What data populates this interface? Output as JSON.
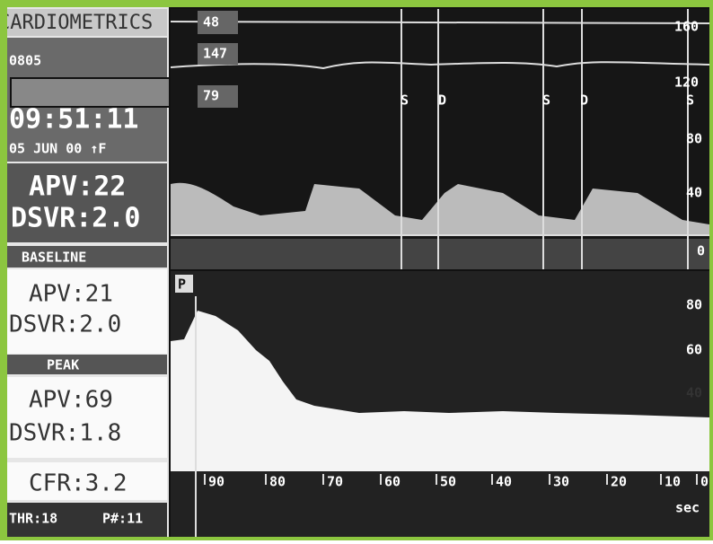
{
  "header": {
    "brand": "CARDIOMETRICS",
    "id": "0805",
    "time": "09:51:11",
    "date": "05 JUN 00 ↑F"
  },
  "current": {
    "apv": "APV:22",
    "dsvr": "DSVR:2.0"
  },
  "baseline": {
    "label": "BASELINE",
    "apv": "APV:21",
    "dsvr": "DSVR:2.0"
  },
  "peak": {
    "label": "PEAK",
    "apv": "APV:69",
    "dsvr": "DSVR:1.8"
  },
  "cfr": "CFR:3.2",
  "footer": {
    "thr": "THR:18",
    "pnum": "P#:11"
  },
  "spectral": {
    "pressures": [
      "48",
      "147",
      "79"
    ],
    "markers": [
      "S",
      "D",
      "S",
      "D"
    ],
    "scale": [
      "160",
      "120",
      "80",
      "40",
      "0"
    ],
    "scale_marker": "S"
  },
  "trend": {
    "marker": "P",
    "scale": [
      "80",
      "60",
      "40"
    ],
    "time_axis": [
      "90",
      "80",
      "70",
      "60",
      "50",
      "40",
      "30",
      "20",
      "10",
      "0"
    ],
    "unit": "sec"
  }
}
